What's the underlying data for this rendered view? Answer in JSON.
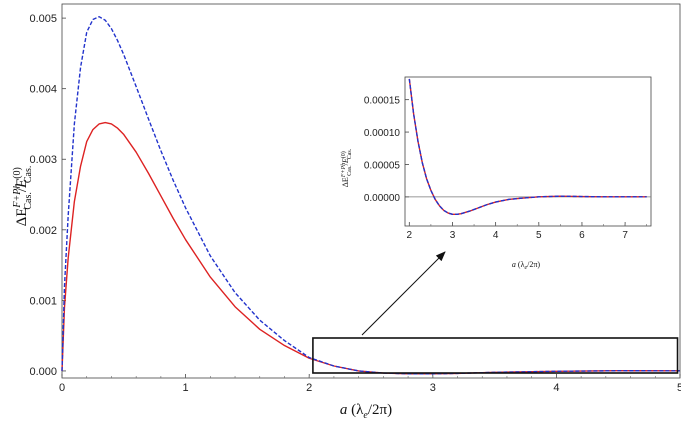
{
  "chart_data": [
    {
      "type": "line",
      "xlabel": "a (λe/2π)",
      "ylabel": "ΔE Cas. F+Ph / E Cas. (0)",
      "xlim": [
        0,
        5
      ],
      "ylim": [
        -0.0001,
        0.0052
      ],
      "x_ticks": [
        "0",
        "1",
        "2",
        "3",
        "4",
        "5"
      ],
      "y_ticks": [
        "0.000",
        "0.001",
        "0.002",
        "0.003",
        "0.004",
        "0.005"
      ],
      "series": [
        {
          "style": "solid",
          "color": "#dd2222",
          "x": [
            0,
            0.02,
            0.05,
            0.1,
            0.15,
            0.2,
            0.25,
            0.3,
            0.35,
            0.4,
            0.45,
            0.5,
            0.6,
            0.7,
            0.8,
            0.9,
            1.0,
            1.2,
            1.4,
            1.6,
            1.8,
            2.0,
            2.2,
            2.4,
            2.6,
            2.8,
            3.0,
            3.2,
            3.5,
            4.0,
            4.5,
            5.0
          ],
          "y": [
            0,
            0.0009,
            0.0016,
            0.0024,
            0.0029,
            0.00325,
            0.00342,
            0.0035,
            0.00352,
            0.0035,
            0.00344,
            0.00335,
            0.0031,
            0.0028,
            0.00248,
            0.00216,
            0.00186,
            0.00133,
            0.00091,
            0.00059,
            0.00036,
            0.00018,
            7e-05,
            0.0,
            -3e-05,
            -4e-05,
            -4e-05,
            -3.5e-05,
            -2e-05,
            -5e-06,
            3e-06,
            2e-06
          ]
        },
        {
          "style": "dashed",
          "color": "#2233cc",
          "x": [
            0,
            0.02,
            0.05,
            0.1,
            0.15,
            0.2,
            0.25,
            0.3,
            0.35,
            0.4,
            0.45,
            0.5,
            0.6,
            0.7,
            0.8,
            0.9,
            1.0,
            1.2,
            1.4,
            1.6,
            1.8,
            2.0,
            2.2,
            2.4,
            2.6,
            2.8,
            3.0,
            3.2,
            3.5,
            4.0,
            4.5,
            5.0
          ],
          "y": [
            0,
            0.0012,
            0.0022,
            0.0035,
            0.0043,
            0.0048,
            0.00498,
            0.00502,
            0.00497,
            0.00485,
            0.00468,
            0.00448,
            0.00403,
            0.00357,
            0.00312,
            0.0027,
            0.00231,
            0.00163,
            0.00111,
            0.00072,
            0.00043,
            0.00019,
            7e-05,
            0.0,
            -3e-05,
            -4e-05,
            -4e-05,
            -3.5e-05,
            -2e-05,
            -5e-06,
            3e-06,
            2e-06
          ]
        }
      ]
    },
    {
      "type": "line",
      "xlabel": "a (λe/2π)",
      "ylabel": "ΔE Cas. F+Ph / E Cas. (0)",
      "xlim": [
        1.9,
        7.6
      ],
      "ylim": [
        -4.5e-05,
        0.000185
      ],
      "x_ticks": [
        "2",
        "3",
        "4",
        "5",
        "6",
        "7"
      ],
      "y_ticks": [
        "0.00000",
        "0.00005",
        "0.00010",
        "0.00015"
      ],
      "series": [
        {
          "style": "solid",
          "color": "#dd2222",
          "x": [
            2.0,
            2.1,
            2.2,
            2.3,
            2.4,
            2.5,
            2.6,
            2.7,
            2.8,
            2.9,
            3.0,
            3.1,
            3.2,
            3.4,
            3.6,
            3.8,
            4.0,
            4.3,
            4.6,
            5.0,
            5.5,
            6.0,
            6.5,
            7.0,
            7.5
          ],
          "y": [
            0.000182,
            0.000128,
            8.6e-05,
            5.3e-05,
            2.8e-05,
            1e-05,
            -4e-06,
            -1.4e-05,
            -2.1e-05,
            -2.5e-05,
            -2.7e-05,
            -2.7e-05,
            -2.6e-05,
            -2.2e-05,
            -1.7e-05,
            -1.2e-05,
            -8e-06,
            -4e-06,
            -2e-06,
            0.0,
            1e-06,
            5e-07,
            0.0,
            0.0,
            0.0
          ]
        },
        {
          "style": "dashed",
          "color": "#2233cc",
          "x": [
            2.0,
            2.1,
            2.2,
            2.3,
            2.4,
            2.5,
            2.6,
            2.7,
            2.8,
            2.9,
            3.0,
            3.1,
            3.2,
            3.4,
            3.6,
            3.8,
            4.0,
            4.3,
            4.6,
            5.0,
            5.5,
            6.0,
            6.5,
            7.0,
            7.5
          ],
          "y": [
            0.000182,
            0.000128,
            8.6e-05,
            5.3e-05,
            2.8e-05,
            1e-05,
            -4e-06,
            -1.4e-05,
            -2.1e-05,
            -2.5e-05,
            -2.7e-05,
            -2.7e-05,
            -2.6e-05,
            -2.2e-05,
            -1.7e-05,
            -1.2e-05,
            -8e-06,
            -4e-06,
            -2e-06,
            0.0,
            1e-06,
            5e-07,
            0.0,
            0.0,
            0.0
          ]
        }
      ]
    }
  ],
  "main_xlabel": {
    "a": "a",
    "rest": " (λ",
    "sub": "e",
    "tail": "/2π)"
  },
  "main_ylabel": {
    "delta": "ΔE",
    "sup": "F+Ph",
    "sub": "Cas.",
    "slash": "/",
    "E": "E",
    "sup0": "(0)",
    "sub0": "Cas."
  },
  "inset_xlabel": {
    "a": "a",
    "rest": " (λ",
    "sub": "e",
    "tail": "/2π)"
  },
  "inset_ylabel": {
    "delta": "ΔE",
    "sup": "F+Ph",
    "sub": "Cas.",
    "slash": "/",
    "E": "E",
    "sup0": "(0)",
    "sub0": "Cas."
  }
}
